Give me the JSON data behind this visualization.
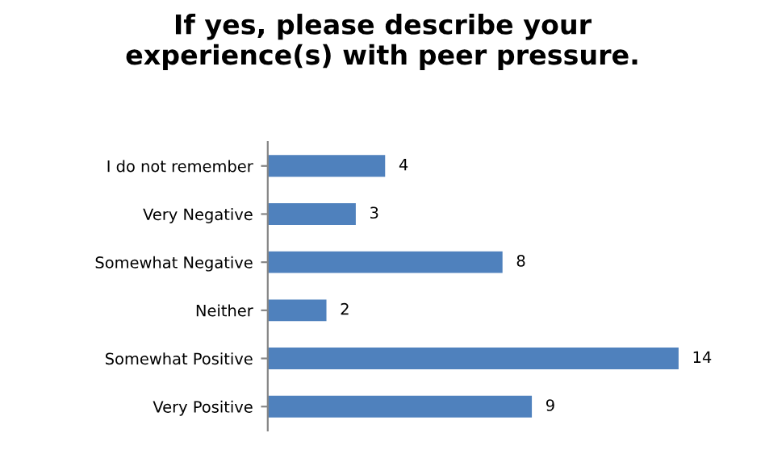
{
  "chart_data": {
    "type": "bar",
    "orientation": "horizontal",
    "title": "If yes, please describe your\nexperience(s) with peer pressure.",
    "categories": [
      "I do not remember",
      "Very Negative",
      "Somewhat Negative",
      "Neither",
      "Somewhat Positive",
      "Very Positive"
    ],
    "values": [
      4,
      3,
      8,
      2,
      14,
      9
    ],
    "color": "#4f81bd",
    "data_labels": true,
    "grid": false,
    "legend": false
  }
}
